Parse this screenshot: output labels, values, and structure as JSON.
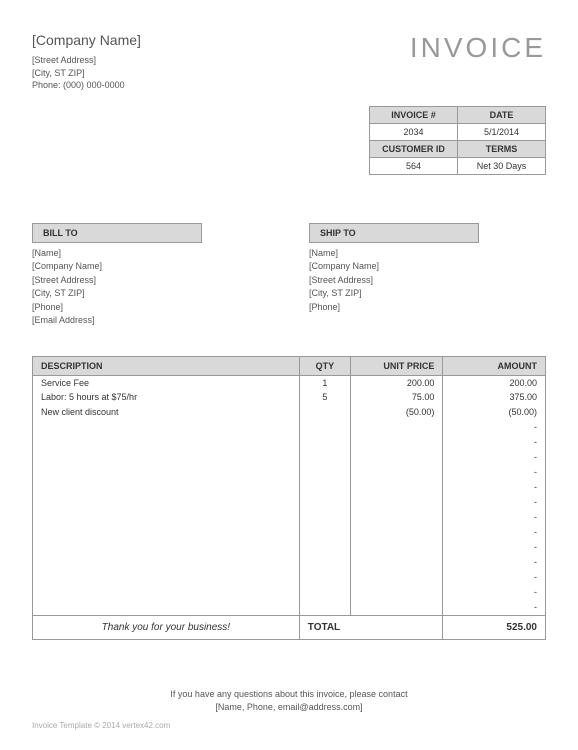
{
  "company": {
    "name": "[Company Name]",
    "street": "[Street Address]",
    "city": "[City, ST  ZIP]",
    "phone_label": "Phone:",
    "phone": "(000) 000-0000"
  },
  "title": "INVOICE",
  "meta": {
    "invoice_no_label": "INVOICE #",
    "invoice_no": "2034",
    "date_label": "DATE",
    "date": "5/1/2014",
    "customer_id_label": "CUSTOMER ID",
    "customer_id": "564",
    "terms_label": "TERMS",
    "terms": "Net 30 Days"
  },
  "bill_to": {
    "header": "BILL TO",
    "name": "[Name]",
    "company": "[Company Name]",
    "street": "[Street Address]",
    "city": "[City, ST  ZIP]",
    "phone": "[Phone]",
    "email": "[Email Address]"
  },
  "ship_to": {
    "header": "SHIP TO",
    "name": "[Name]",
    "company": "[Company Name]",
    "street": "[Street Address]",
    "city": "[City, ST  ZIP]",
    "phone": "[Phone]"
  },
  "items_table": {
    "headers": {
      "description": "DESCRIPTION",
      "qty": "QTY",
      "unit_price": "UNIT PRICE",
      "amount": "AMOUNT"
    },
    "rows": [
      {
        "description": "Service Fee",
        "qty": "1",
        "unit_price": "200.00",
        "amount": "200.00"
      },
      {
        "description": "Labor: 5 hours at $75/hr",
        "qty": "5",
        "unit_price": "75.00",
        "amount": "375.00"
      },
      {
        "description": "New client discount",
        "qty": "",
        "unit_price": "(50.00)",
        "amount": "(50.00)"
      },
      {
        "description": "",
        "qty": "",
        "unit_price": "",
        "amount": "-"
      },
      {
        "description": "",
        "qty": "",
        "unit_price": "",
        "amount": "-"
      },
      {
        "description": "",
        "qty": "",
        "unit_price": "",
        "amount": "-"
      },
      {
        "description": "",
        "qty": "",
        "unit_price": "",
        "amount": "-"
      },
      {
        "description": "",
        "qty": "",
        "unit_price": "",
        "amount": "-"
      },
      {
        "description": "",
        "qty": "",
        "unit_price": "",
        "amount": "-"
      },
      {
        "description": "",
        "qty": "",
        "unit_price": "",
        "amount": "-"
      },
      {
        "description": "",
        "qty": "",
        "unit_price": "",
        "amount": "-"
      },
      {
        "description": "",
        "qty": "",
        "unit_price": "",
        "amount": "-"
      },
      {
        "description": "",
        "qty": "",
        "unit_price": "",
        "amount": "-"
      },
      {
        "description": "",
        "qty": "",
        "unit_price": "",
        "amount": "-"
      },
      {
        "description": "",
        "qty": "",
        "unit_price": "",
        "amount": "-"
      },
      {
        "description": "",
        "qty": "",
        "unit_price": "",
        "amount": "-"
      }
    ],
    "thank_you": "Thank you for your business!",
    "total_label": "TOTAL",
    "total": "525.00"
  },
  "contact": {
    "line1": "If you have any questions about this invoice, please contact",
    "line2": "[Name, Phone, email@address.com]"
  },
  "footer": "Invoice Template © 2014 vertex42.com"
}
